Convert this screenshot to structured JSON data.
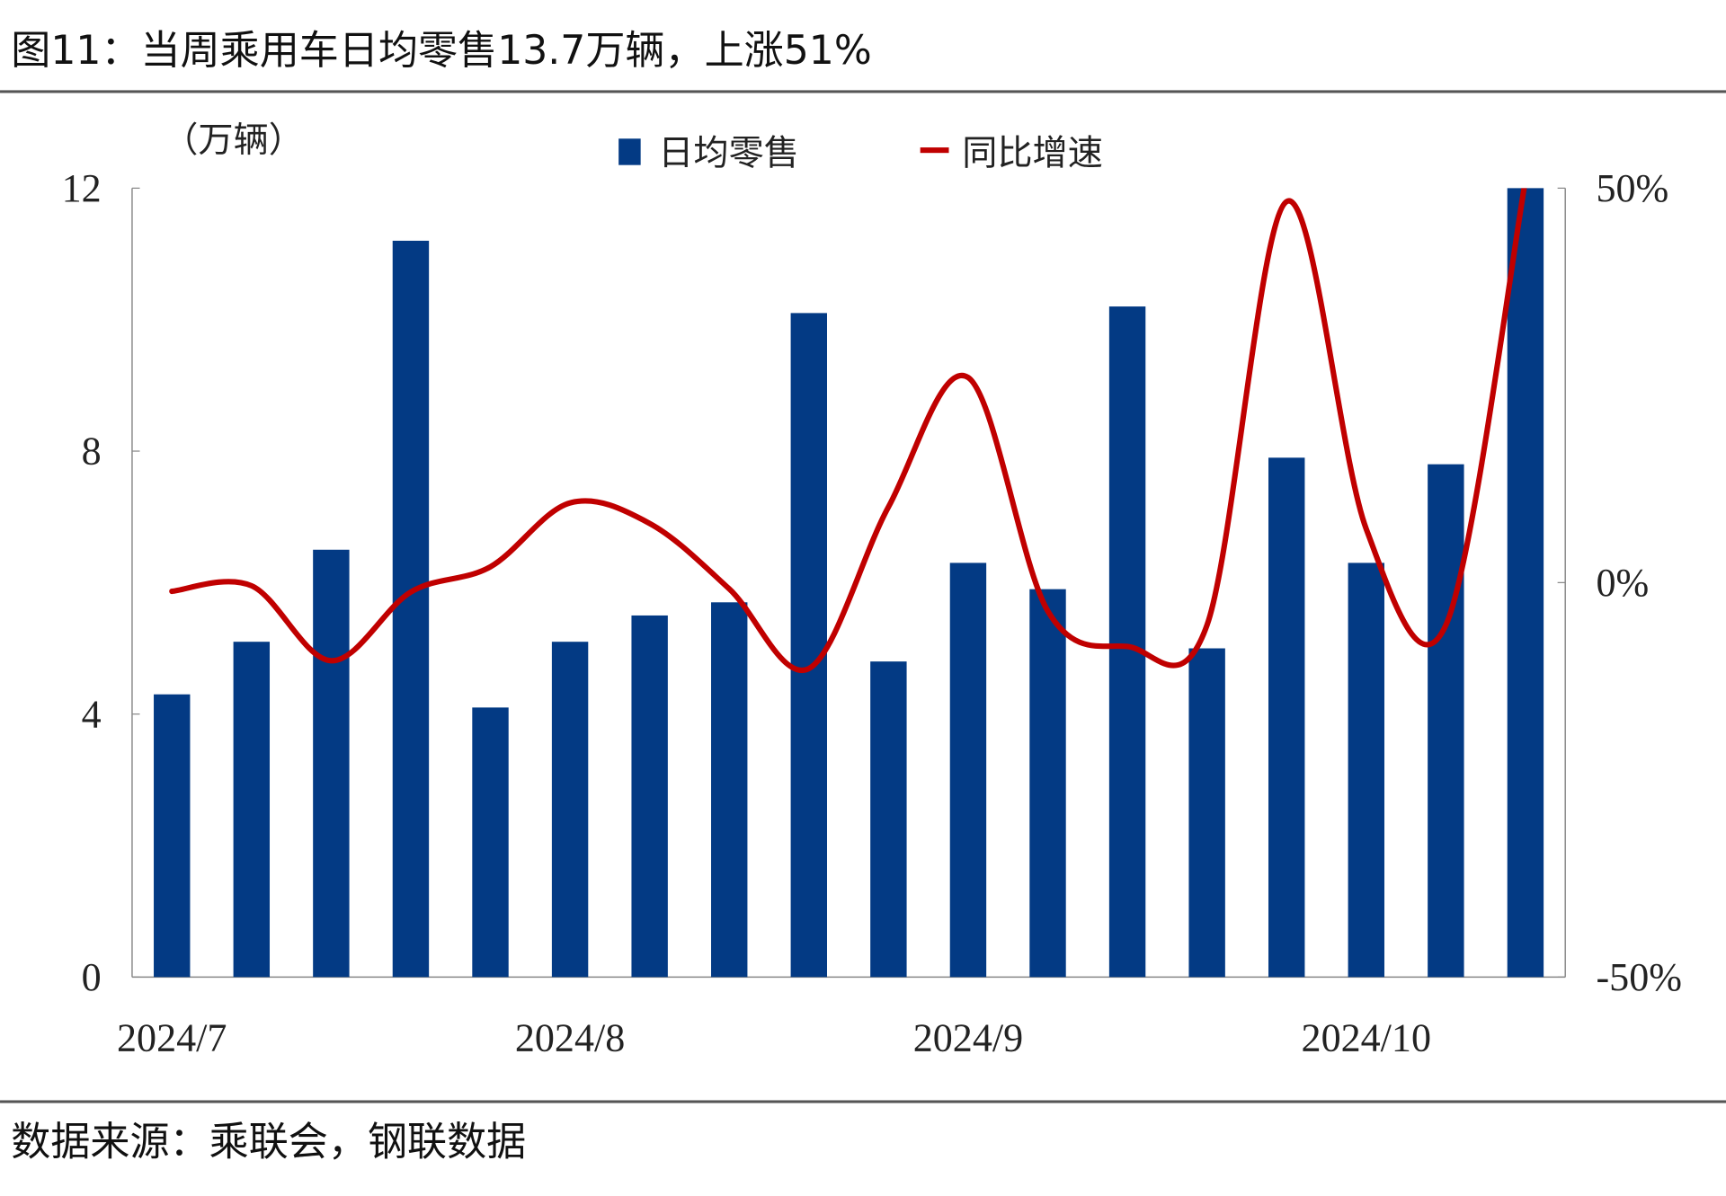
{
  "title": "图11：当周乘用车日均零售13.7万辆，上涨51%",
  "source": "数据来源：乘联会，钢联数据",
  "colors": {
    "bar": "#033a84",
    "line": "#c00000",
    "rule": "#555555"
  },
  "chart_data": {
    "type": "bar+line",
    "title": "图11：当周乘用车日均零售13.7万辆，上涨51%",
    "unit_label": "（万辆）",
    "x_tick_labels": [
      "2024/7",
      "2024/8",
      "2024/9",
      "2024/10"
    ],
    "x_tick_positions": [
      0,
      5,
      10,
      15
    ],
    "left_axis": {
      "ylim": [
        0,
        12
      ],
      "ticks": [
        "0",
        "4",
        "8",
        "12"
      ]
    },
    "right_axis": {
      "ylim": [
        -50,
        50
      ],
      "ticks": [
        "-50%",
        "0%",
        "50%"
      ]
    },
    "series": [
      {
        "name": "日均零售",
        "type": "bar",
        "axis": "left",
        "values": [
          4.3,
          5.1,
          6.5,
          11.2,
          4.1,
          5.1,
          5.5,
          5.7,
          10.1,
          4.8,
          6.3,
          5.9,
          10.2,
          5.0,
          7.9,
          6.3,
          7.8,
          13.7
        ]
      },
      {
        "name": "同比增速",
        "type": "line",
        "axis": "right",
        "values": [
          -1.1,
          -0.4,
          -9.9,
          -1.2,
          2,
          10.1,
          7.5,
          -0.8,
          -10.9,
          9.6,
          26,
          -3.6,
          -8.1,
          -5.4,
          48.3,
          6.8,
          -5.4,
          51
        ]
      }
    ],
    "legend": "top-center",
    "grid": false
  }
}
